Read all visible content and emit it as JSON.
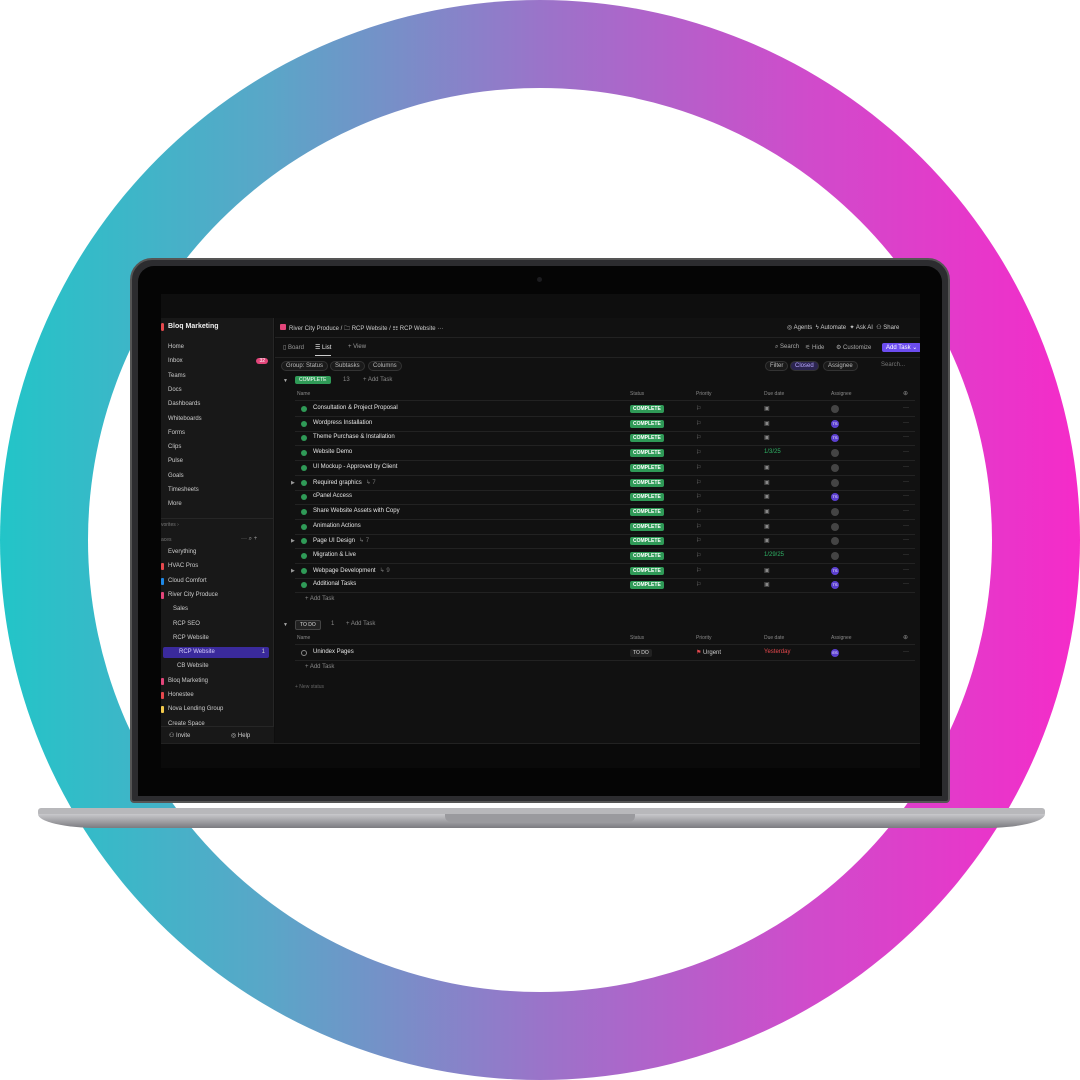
{
  "colors": {
    "ring_start": "#22c5c8",
    "ring_end": "#f52bc9",
    "complete": "#2f9a57",
    "accent": "#6c4df0",
    "urgent": "#e5484d"
  },
  "sidebar": {
    "workspace": "Bloq Marketing",
    "nav": [
      {
        "label": "Home"
      },
      {
        "label": "Inbox",
        "badge": "32"
      },
      {
        "label": "Teams"
      },
      {
        "label": "Docs"
      },
      {
        "label": "Dashboards"
      },
      {
        "label": "Whiteboards"
      },
      {
        "label": "Forms"
      },
      {
        "label": "Clips"
      },
      {
        "label": "Pulse"
      },
      {
        "label": "Goals"
      },
      {
        "label": "Timesheets"
      },
      {
        "label": "More"
      }
    ],
    "favorites": "vorites ›",
    "spaces": "aces",
    "space_items": [
      {
        "label": "Everything",
        "color": ""
      },
      {
        "label": "HVAC Pros",
        "color": "#e5484d"
      },
      {
        "label": "Cloud Comfort",
        "color": "#1e88e5"
      },
      {
        "label": "River City Produce",
        "color": "#e2457a"
      },
      {
        "label": "Sales",
        "color": ""
      },
      {
        "label": "RCP SEO",
        "color": ""
      },
      {
        "label": "RCP Website",
        "color": ""
      },
      {
        "label": "RCP Website",
        "color": "",
        "count": "1"
      },
      {
        "label": "CB Website",
        "color": ""
      },
      {
        "label": "Bloq Marketing",
        "color": "#e2457a"
      },
      {
        "label": "Honestee",
        "color": "#e5484d"
      },
      {
        "label": "Nova Lending Group",
        "color": "#f2c94c"
      },
      {
        "label": "Create Space",
        "color": ""
      }
    ],
    "invite": "Invite",
    "help": "Help"
  },
  "header": {
    "breadcrumb": [
      "River City Produce",
      "RCP Website",
      "RCP Website"
    ],
    "actions": [
      "Agents",
      "Automate",
      "Ask AI",
      "Share"
    ]
  },
  "views": {
    "tabs": [
      "Board",
      "List",
      "+ View"
    ],
    "right": [
      "Search",
      "Hide",
      "Customize"
    ],
    "add_task": "Add Task"
  },
  "filters": {
    "left": [
      "Group: Status",
      "Subtasks",
      "Columns"
    ],
    "right": [
      "Filter",
      "Closed",
      "Assignee"
    ],
    "search_placeholder": "Search..."
  },
  "columns": [
    "Name",
    "Status",
    "Priority",
    "Due date",
    "Assignee"
  ],
  "groups": [
    {
      "status": "COMPLETE",
      "count": "13",
      "add": "+ Add Task",
      "tasks": [
        {
          "name": "Consultation & Project Proposal",
          "status": "COMPLETE",
          "due": "",
          "assignee": ""
        },
        {
          "name": "Wordpress Installation",
          "status": "COMPLETE",
          "due": "",
          "assignee": "TS"
        },
        {
          "name": "Theme Purchase & Installation",
          "status": "COMPLETE",
          "due": "",
          "assignee": "TS"
        },
        {
          "name": "Website Demo",
          "status": "COMPLETE",
          "due": "1/3/25",
          "assignee": ""
        },
        {
          "name": "UI Mockup - Approved by Client",
          "status": "COMPLETE",
          "due": "",
          "assignee": ""
        },
        {
          "name": "Required graphics",
          "subtasks": "7",
          "status": "COMPLETE",
          "due": "",
          "assignee": ""
        },
        {
          "name": "cPanel Access",
          "status": "COMPLETE",
          "due": "",
          "assignee": "TS"
        },
        {
          "name": "Share Website Assets with Copy",
          "status": "COMPLETE",
          "due": "",
          "assignee": ""
        },
        {
          "name": "Animation Actions",
          "status": "COMPLETE",
          "due": "",
          "assignee": ""
        },
        {
          "name": "Page UI Design",
          "subtasks": "7",
          "status": "COMPLETE",
          "due": "",
          "assignee": ""
        },
        {
          "name": "Migration & Live",
          "status": "COMPLETE",
          "due": "1/29/25",
          "assignee": ""
        },
        {
          "name": "Webpage Development",
          "subtasks": "9",
          "status": "COMPLETE",
          "due": "",
          "assignee": "TS"
        },
        {
          "name": "Additional Tasks",
          "status": "COMPLETE",
          "due": "",
          "assignee": "TS"
        }
      ]
    },
    {
      "status": "TO DO",
      "count": "1",
      "add": "+ Add Task",
      "tasks": [
        {
          "name": "Unindex Pages",
          "status": "TO DO",
          "priority": "Urgent",
          "due": "Yesterday",
          "assignee": "ES"
        }
      ]
    }
  ],
  "add_task_row": "Add Task",
  "new_status": "+ New status"
}
